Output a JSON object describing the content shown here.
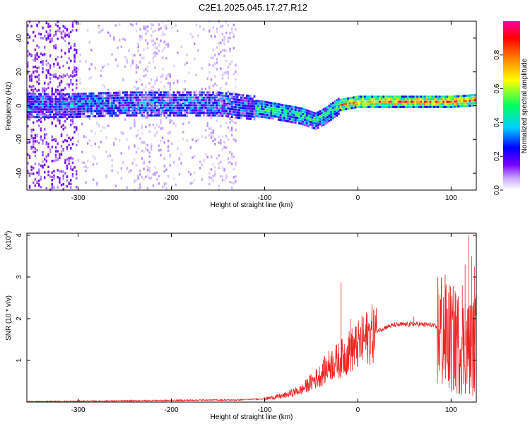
{
  "title": "C2E1.2025.045.17.27.R12",
  "chart_data": [
    {
      "type": "heatmap",
      "xlabel": "Height of straight line (km)",
      "ylabel": "Frequency (Hz)",
      "xlim": [
        -355,
        127
      ],
      "ylim": [
        -50,
        50
      ],
      "xticks": [
        -300,
        -200,
        -100,
        0,
        100
      ],
      "yticks": [
        -40,
        -20,
        0,
        20,
        40
      ],
      "colorbar": {
        "label": "Normalized spectral amplitude",
        "range": [
          0,
          1
        ],
        "ticks": [
          0.0,
          0.2,
          0.4,
          0.6,
          0.8
        ]
      },
      "ridge": [
        [
          -310,
          0
        ],
        [
          -250,
          1
        ],
        [
          -200,
          1
        ],
        [
          -150,
          1
        ],
        [
          -100,
          -2
        ],
        [
          -80,
          -4
        ],
        [
          -60,
          -6
        ],
        [
          -45,
          -9
        ],
        [
          -35,
          -6
        ],
        [
          -20,
          0
        ],
        [
          0,
          2
        ],
        [
          50,
          2
        ],
        [
          100,
          2
        ],
        [
          127,
          3
        ]
      ],
      "colors": [
        "#ffffff",
        "#c8a8ff",
        "#7a00ff",
        "#0000ff",
        "#00d0ff",
        "#00ff60",
        "#ffff00",
        "#ff8000",
        "#ff0000",
        "#ff00c0"
      ]
    },
    {
      "type": "line",
      "xlabel": "Height of straight line (km)",
      "ylabel": "SNR (10 * v/v)",
      "yscale_label": "(x10",
      "yscale_exp": "4",
      "yscale_close": ")",
      "xlim": [
        -355,
        127
      ],
      "ylim": [
        0,
        4.05
      ],
      "xticks": [
        -300,
        -200,
        -100,
        0,
        100
      ],
      "yticks": [
        1,
        2,
        3,
        4
      ],
      "line_color": "#ee2222",
      "series": [
        {
          "x": [
            -355,
            -300,
            -250,
            -200,
            -160,
            -130,
            -100,
            -80,
            -60,
            -40,
            -30,
            -20,
            -10,
            0,
            10,
            20,
            30,
            40,
            60,
            80,
            90,
            100,
            110,
            120,
            127
          ],
          "y": [
            0.01,
            0.02,
            0.03,
            0.04,
            0.05,
            0.05,
            0.08,
            0.15,
            0.3,
            0.65,
            0.9,
            1.0,
            1.2,
            1.35,
            1.55,
            1.7,
            1.8,
            1.85,
            1.87,
            1.85,
            1.7,
            1.5,
            1.4,
            1.3,
            1.4
          ],
          "spikes": [
            [
              -18,
              2.87
            ],
            [
              -8,
              2.0
            ],
            [
              60,
              2.05
            ],
            [
              92,
              2.1
            ],
            [
              105,
              2.6
            ],
            [
              112,
              2.8
            ],
            [
              115,
              3.3
            ],
            [
              119,
              4.0
            ],
            [
              122,
              3.5
            ],
            [
              125,
              3.25
            ]
          ]
        }
      ]
    }
  ]
}
